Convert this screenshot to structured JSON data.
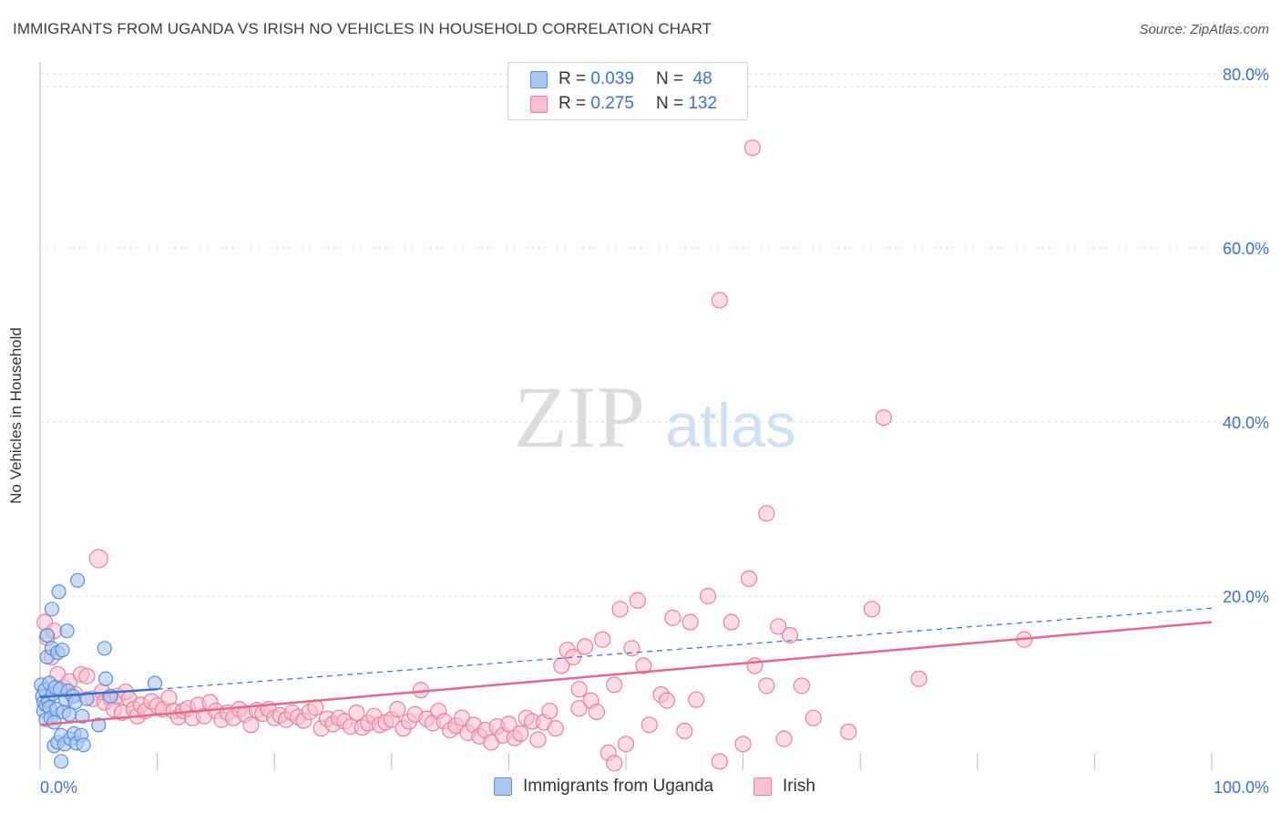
{
  "header": {
    "title": "IMMIGRANTS FROM UGANDA VS IRISH NO VEHICLES IN HOUSEHOLD CORRELATION CHART",
    "source": "Source: ZipAtlas.com"
  },
  "watermark": {
    "zip": "ZIP",
    "atlas": "atlas"
  },
  "legend": {
    "rows": [
      {
        "r_label": "R =",
        "r_value": "0.039",
        "n_label": "N =",
        "n_value": "48"
      },
      {
        "r_label": "R =",
        "r_value": "0.275",
        "n_label": "N =",
        "n_value": "132"
      }
    ]
  },
  "bottom_legend": {
    "items": [
      {
        "label": "Immigrants from Uganda"
      },
      {
        "label": "Irish"
      }
    ]
  },
  "colors": {
    "blue_fill": "#aac8f0",
    "blue_stroke": "#5b8fd8",
    "blue_line": "#3a6fd0",
    "pink_fill": "#f8bfd0",
    "pink_stroke": "#e8819f",
    "pink_line": "#e5698e",
    "tick_label": "#3b73c9",
    "grid": "#dddddd"
  },
  "chart_data": {
    "type": "scatter",
    "title": "IMMIGRANTS FROM UGANDA VS IRISH NO VEHICLES IN HOUSEHOLD CORRELATION CHART",
    "xlabel": "",
    "ylabel": "No Vehicles in Household",
    "xlim": [
      0,
      100
    ],
    "ylim": [
      0,
      85
    ],
    "x_tick_labels": [
      {
        "value": 0,
        "label": "0.0%"
      },
      {
        "value": 100,
        "label": "100.0%"
      }
    ],
    "y_tick_labels": [
      {
        "value": 20,
        "label": "20.0%"
      },
      {
        "value": 40,
        "label": "40.0%"
      },
      {
        "value": 60,
        "label": "60.0%"
      },
      {
        "value": 80,
        "label": "80.0%"
      }
    ],
    "x_minor_ticks": [
      10,
      20,
      30,
      40,
      50,
      60,
      70,
      80,
      90,
      100
    ],
    "grid": true,
    "legend_position": "top-center",
    "series": [
      {
        "name": "Immigrants from Uganda",
        "color": "blue",
        "trend": {
          "x": [
            0,
            10
          ],
          "y": [
            8.4,
            9.3
          ],
          "dashed_extension_to": [
            100,
            18.6
          ]
        },
        "points": [
          [
            0.1,
            9.8
          ],
          [
            0.2,
            8.5
          ],
          [
            0.3,
            7.8
          ],
          [
            0.3,
            6.8
          ],
          [
            0.4,
            9.2
          ],
          [
            0.5,
            7.5
          ],
          [
            0.5,
            5.8
          ],
          [
            0.6,
            15.5
          ],
          [
            0.6,
            13.0
          ],
          [
            0.7,
            8.0
          ],
          [
            0.8,
            10.0
          ],
          [
            0.8,
            7.2
          ],
          [
            0.9,
            6.0
          ],
          [
            1.0,
            18.5
          ],
          [
            1.0,
            14.0
          ],
          [
            1.1,
            8.8
          ],
          [
            1.2,
            5.5
          ],
          [
            1.2,
            2.8
          ],
          [
            1.3,
            9.5
          ],
          [
            1.4,
            7.0
          ],
          [
            1.5,
            13.5
          ],
          [
            1.5,
            3.2
          ],
          [
            1.6,
            20.5
          ],
          [
            1.7,
            9.3
          ],
          [
            1.8,
            4.0
          ],
          [
            1.8,
            1.0
          ],
          [
            1.9,
            13.8
          ],
          [
            2.0,
            6.7
          ],
          [
            2.1,
            3.0
          ],
          [
            2.2,
            8.1
          ],
          [
            2.3,
            16.0
          ],
          [
            2.4,
            9.1
          ],
          [
            2.5,
            6.4
          ],
          [
            2.6,
            3.6
          ],
          [
            2.8,
            8.5
          ],
          [
            2.9,
            4.2
          ],
          [
            3.0,
            7.8
          ],
          [
            3.1,
            3.1
          ],
          [
            3.2,
            21.8
          ],
          [
            3.5,
            4.0
          ],
          [
            3.6,
            6.2
          ],
          [
            3.7,
            2.9
          ],
          [
            4.0,
            8.2
          ],
          [
            5.0,
            5.2
          ],
          [
            5.5,
            14.0
          ],
          [
            5.6,
            10.5
          ],
          [
            6.0,
            8.5
          ],
          [
            9.8,
            10.0
          ]
        ]
      },
      {
        "name": "Irish",
        "color": "pink",
        "trend": {
          "x": [
            0,
            100
          ],
          "y": [
            5.2,
            17.0
          ]
        },
        "points": [
          [
            0.4,
            17.0
          ],
          [
            0.6,
            15.2
          ],
          [
            1.0,
            13.0
          ],
          [
            1.2,
            16.0
          ],
          [
            1.5,
            11.0
          ],
          [
            2.0,
            9.5
          ],
          [
            2.5,
            10.2
          ],
          [
            3.0,
            8.7
          ],
          [
            3.5,
            11.0
          ],
          [
            4.0,
            10.8
          ],
          [
            4.5,
            8.2
          ],
          [
            5.0,
            24.3
          ],
          [
            5.3,
            9.0
          ],
          [
            5.5,
            7.8
          ],
          [
            6.0,
            8.3
          ],
          [
            6.3,
            7.0
          ],
          [
            6.6,
            8.5
          ],
          [
            7.0,
            6.6
          ],
          [
            7.3,
            9.0
          ],
          [
            7.6,
            8.2
          ],
          [
            8.0,
            7.0
          ],
          [
            8.3,
            6.2
          ],
          [
            8.6,
            7.5
          ],
          [
            9.0,
            6.8
          ],
          [
            9.5,
            7.9
          ],
          [
            10.0,
            7.4
          ],
          [
            10.5,
            7.0
          ],
          [
            11.0,
            8.3
          ],
          [
            11.4,
            6.8
          ],
          [
            11.8,
            6.1
          ],
          [
            12.2,
            6.8
          ],
          [
            12.6,
            7.1
          ],
          [
            13.0,
            6.0
          ],
          [
            13.5,
            7.5
          ],
          [
            14.0,
            6.2
          ],
          [
            14.5,
            7.8
          ],
          [
            15.0,
            6.8
          ],
          [
            15.5,
            5.8
          ],
          [
            16.0,
            6.6
          ],
          [
            16.5,
            6.0
          ],
          [
            17.0,
            7.0
          ],
          [
            17.5,
            6.4
          ],
          [
            18.0,
            5.2
          ],
          [
            18.5,
            6.9
          ],
          [
            19.0,
            6.5
          ],
          [
            19.5,
            7.0
          ],
          [
            20.0,
            6.0
          ],
          [
            20.5,
            6.3
          ],
          [
            21.0,
            5.8
          ],
          [
            21.5,
            6.6
          ],
          [
            22.0,
            6.1
          ],
          [
            22.5,
            5.7
          ],
          [
            23.0,
            6.7
          ],
          [
            23.5,
            7.2
          ],
          [
            24.0,
            4.8
          ],
          [
            24.5,
            5.9
          ],
          [
            25.0,
            5.3
          ],
          [
            25.5,
            6.0
          ],
          [
            26.0,
            5.6
          ],
          [
            26.5,
            5.0
          ],
          [
            27.0,
            6.6
          ],
          [
            27.5,
            4.9
          ],
          [
            28.0,
            5.4
          ],
          [
            28.5,
            6.2
          ],
          [
            29.0,
            5.2
          ],
          [
            29.5,
            5.5
          ],
          [
            30.0,
            5.8
          ],
          [
            30.5,
            7.0
          ],
          [
            31.0,
            4.8
          ],
          [
            31.5,
            5.6
          ],
          [
            32.0,
            6.4
          ],
          [
            32.5,
            9.2
          ],
          [
            33.0,
            5.9
          ],
          [
            33.5,
            5.4
          ],
          [
            34.0,
            6.8
          ],
          [
            34.5,
            5.6
          ],
          [
            35.0,
            4.6
          ],
          [
            35.5,
            5.1
          ],
          [
            36.0,
            6.0
          ],
          [
            36.5,
            4.3
          ],
          [
            37.0,
            5.2
          ],
          [
            37.5,
            3.9
          ],
          [
            38.0,
            4.6
          ],
          [
            38.5,
            3.2
          ],
          [
            39.0,
            5.0
          ],
          [
            39.5,
            4.0
          ],
          [
            40.0,
            5.3
          ],
          [
            40.5,
            3.7
          ],
          [
            41.0,
            4.2
          ],
          [
            41.5,
            6.0
          ],
          [
            42.0,
            5.6
          ],
          [
            42.5,
            3.5
          ],
          [
            43.0,
            5.5
          ],
          [
            43.5,
            6.8
          ],
          [
            44.0,
            4.8
          ],
          [
            44.5,
            12.0
          ],
          [
            45.0,
            13.8
          ],
          [
            45.5,
            13.0
          ],
          [
            46.0,
            9.3
          ],
          [
            46.5,
            14.2
          ],
          [
            47.0,
            8.0
          ],
          [
            47.5,
            6.7
          ],
          [
            48.0,
            15.0
          ],
          [
            48.5,
            2.0
          ],
          [
            49.0,
            9.8
          ],
          [
            49.5,
            18.5
          ],
          [
            50.0,
            3.0
          ],
          [
            50.5,
            14.0
          ],
          [
            51.0,
            19.5
          ],
          [
            51.5,
            12.0
          ],
          [
            52.0,
            5.2
          ],
          [
            53.0,
            8.7
          ],
          [
            53.5,
            8.0
          ],
          [
            54.0,
            17.5
          ],
          [
            55.0,
            4.5
          ],
          [
            55.5,
            17.0
          ],
          [
            56.0,
            8.1
          ],
          [
            57.0,
            20.0
          ],
          [
            58.0,
            1.0
          ],
          [
            59.0,
            17.0
          ],
          [
            60.0,
            3.0
          ],
          [
            60.5,
            22.0
          ],
          [
            61.0,
            12.0
          ],
          [
            62.0,
            9.7
          ],
          [
            63.0,
            16.5
          ],
          [
            64.0,
            15.5
          ],
          [
            65.0,
            9.7
          ],
          [
            66.0,
            6.0
          ],
          [
            69.0,
            4.4
          ],
          [
            71.0,
            18.5
          ],
          [
            75.0,
            10.5
          ],
          [
            84.0,
            15.0
          ],
          [
            60.8,
            71.5
          ],
          [
            58.0,
            54.0
          ],
          [
            72.0,
            40.5
          ],
          [
            62.0,
            29.5
          ],
          [
            46.0,
            7.1
          ],
          [
            49.0,
            0.8
          ],
          [
            63.5,
            3.6
          ]
        ]
      }
    ]
  }
}
